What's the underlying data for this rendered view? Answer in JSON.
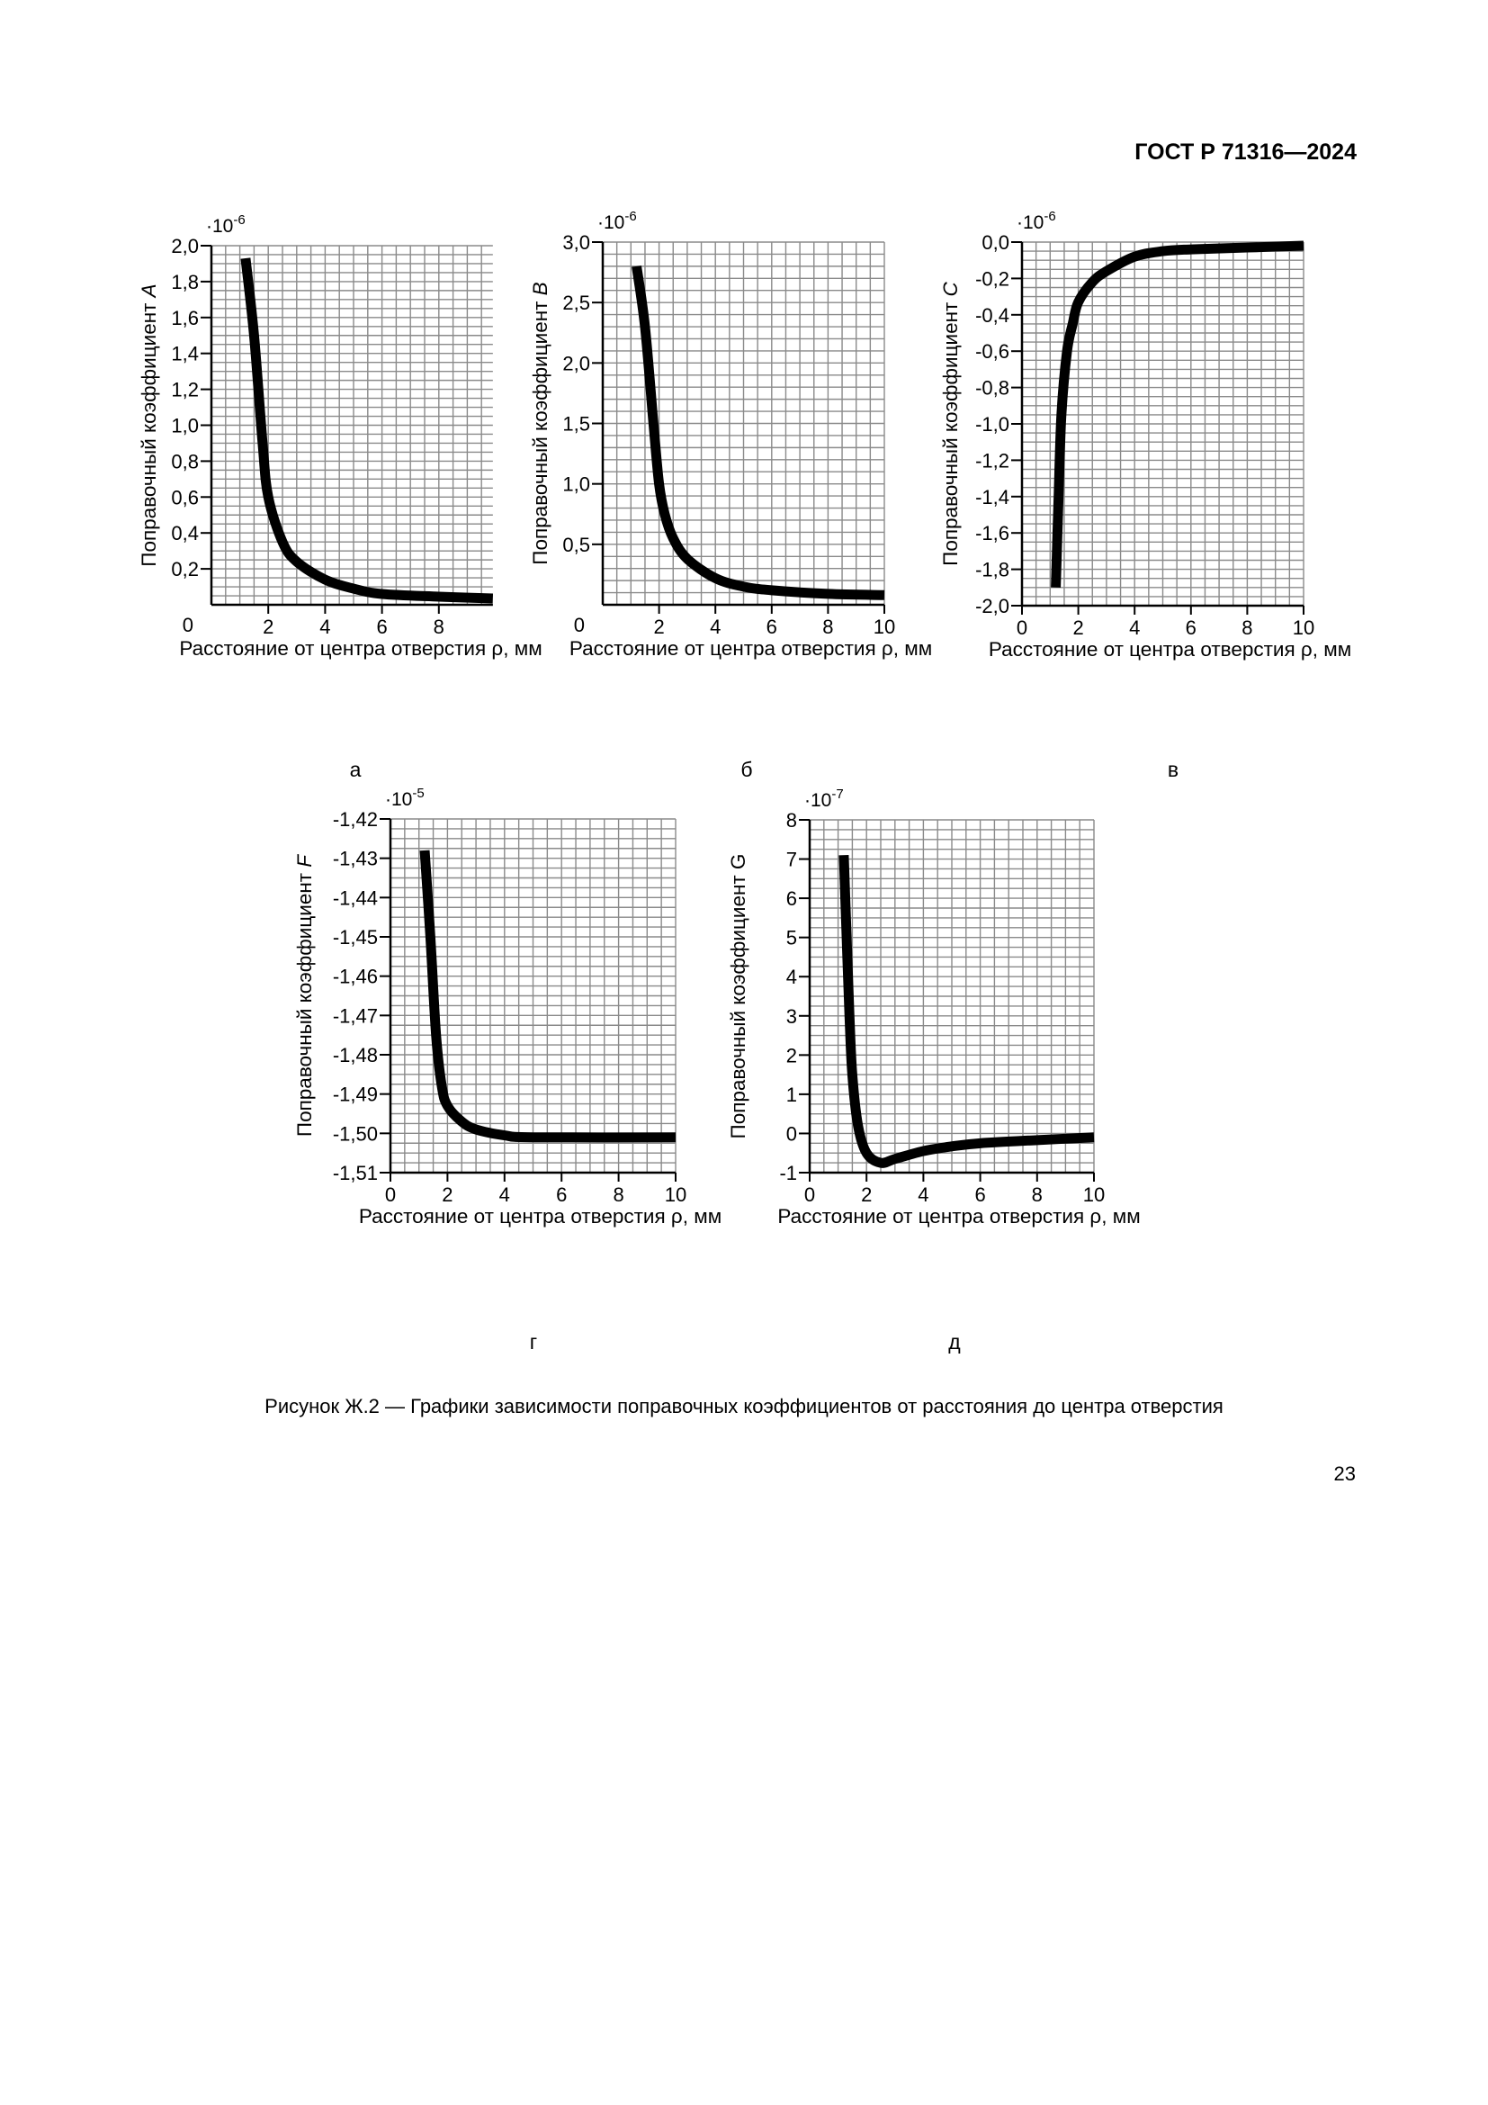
{
  "header": {
    "doc_id": "ГОСТ Р 71316—2024"
  },
  "caption": "Рисунок Ж.2 — Графики зависимости поправочных коэффициентов от расстояния до центра отверстия",
  "page_number": "23",
  "chart_data": [
    {
      "type": "line",
      "panel_label": "а",
      "xlabel": "Расстояние от центра отверстия ρ, мм",
      "ylabel": "Поправочный коэффициент",
      "ylabel_symbol": "A",
      "ylabel_symbol_italic": true,
      "multiplier": {
        "base": "·10",
        "exp": "-6"
      },
      "xlim": [
        0,
        10
      ],
      "ylim": [
        0,
        2.0
      ],
      "grid": true,
      "xticks": [
        {
          "v": 2,
          "label": "2"
        },
        {
          "v": 4,
          "label": "4"
        },
        {
          "v": 6,
          "label": "6"
        },
        {
          "v": 8,
          "label": "8"
        }
      ],
      "yticks": [
        {
          "v": 0,
          "label": "0"
        },
        {
          "v": 0.2,
          "label": "0,2"
        },
        {
          "v": 0.4,
          "label": "0,4"
        },
        {
          "v": 0.6,
          "label": "0,6"
        },
        {
          "v": 0.8,
          "label": "0,8"
        },
        {
          "v": 1.0,
          "label": "1,0"
        },
        {
          "v": 1.2,
          "label": "1,2"
        },
        {
          "v": 1.4,
          "label": "1,4"
        },
        {
          "v": 1.6,
          "label": "1,6"
        },
        {
          "v": 1.8,
          "label": "1,8"
        },
        {
          "v": 2.0,
          "label": "2,0"
        }
      ],
      "x": [
        1.2,
        1.5,
        1.8,
        2.0,
        2.5,
        3,
        4,
        5,
        6,
        8,
        9.9
      ],
      "y": [
        1.93,
        1.5,
        0.9,
        0.6,
        0.35,
        0.24,
        0.14,
        0.09,
        0.06,
        0.045,
        0.035
      ]
    },
    {
      "type": "line",
      "panel_label": "б",
      "xlabel": "Расстояние от центра отверстия ρ, мм",
      "ylabel": "Поправочный коэффициент",
      "ylabel_symbol": "B",
      "ylabel_symbol_italic": true,
      "multiplier": {
        "base": "·10",
        "exp": "-6"
      },
      "xlim": [
        0,
        10
      ],
      "ylim": [
        0,
        3.0
      ],
      "grid": true,
      "xticks": [
        {
          "v": 2,
          "label": "2"
        },
        {
          "v": 4,
          "label": "4"
        },
        {
          "v": 6,
          "label": "6"
        },
        {
          "v": 8,
          "label": "8"
        },
        {
          "v": 10,
          "label": "10"
        }
      ],
      "yticks": [
        {
          "v": 0,
          "label": "0"
        },
        {
          "v": 0.5,
          "label": "0,5"
        },
        {
          "v": 1.0,
          "label": "1,0"
        },
        {
          "v": 1.5,
          "label": "1,5"
        },
        {
          "v": 2.0,
          "label": "2,0"
        },
        {
          "v": 2.5,
          "label": "2,5"
        },
        {
          "v": 3.0,
          "label": "3,0"
        }
      ],
      "x": [
        1.2,
        1.5,
        1.8,
        2.0,
        2.2,
        2.5,
        3,
        4,
        5,
        6,
        8,
        10
      ],
      "y": [
        2.8,
        2.3,
        1.5,
        1.0,
        0.75,
        0.55,
        0.38,
        0.22,
        0.15,
        0.12,
        0.09,
        0.08
      ]
    },
    {
      "type": "line",
      "panel_label": "в",
      "xlabel": "Расстояние от центра отверстия ρ, мм",
      "ylabel": "Поправочный коэффициент",
      "ylabel_symbol": "C",
      "ylabel_symbol_italic": true,
      "multiplier": {
        "base": "·10",
        "exp": "-6"
      },
      "xlim": [
        0,
        10
      ],
      "ylim": [
        -2.0,
        0.0
      ],
      "grid": true,
      "xticks": [
        {
          "v": 0,
          "label": "0"
        },
        {
          "v": 2,
          "label": "2"
        },
        {
          "v": 4,
          "label": "4"
        },
        {
          "v": 6,
          "label": "6"
        },
        {
          "v": 8,
          "label": "8"
        },
        {
          "v": 10,
          "label": "10"
        }
      ],
      "yticks": [
        {
          "v": 0,
          "label": "0,0"
        },
        {
          "v": -0.2,
          "label": "-0,2"
        },
        {
          "v": -0.4,
          "label": "-0,4"
        },
        {
          "v": -0.6,
          "label": "-0,6"
        },
        {
          "v": -0.8,
          "label": "-0,8"
        },
        {
          "v": -1.0,
          "label": "-1,0"
        },
        {
          "v": -1.2,
          "label": "-1,2"
        },
        {
          "v": -1.4,
          "label": "-1,4"
        },
        {
          "v": -1.6,
          "label": "-1,6"
        },
        {
          "v": -1.8,
          "label": "-1,8"
        },
        {
          "v": -2.0,
          "label": "-2,0"
        }
      ],
      "x": [
        1.2,
        1.3,
        1.4,
        1.6,
        1.8,
        2.0,
        2.5,
        3,
        4,
        5,
        6,
        8,
        10
      ],
      "y": [
        -1.9,
        -1.4,
        -0.95,
        -0.6,
        -0.45,
        -0.33,
        -0.22,
        -0.16,
        -0.08,
        -0.05,
        -0.04,
        -0.03,
        -0.02
      ]
    },
    {
      "type": "line",
      "panel_label": "г",
      "xlabel": "Расстояние от центра отверстия ρ, мм",
      "ylabel": "Поправочный коэффициент",
      "ylabel_symbol": "F",
      "ylabel_symbol_italic": true,
      "multiplier": {
        "base": "·10",
        "exp": "-5"
      },
      "xlim": [
        0,
        10
      ],
      "ylim": [
        -1.51,
        -1.42
      ],
      "grid": true,
      "xticks": [
        {
          "v": 0,
          "label": "0"
        },
        {
          "v": 2,
          "label": "2"
        },
        {
          "v": 4,
          "label": "4"
        },
        {
          "v": 6,
          "label": "6"
        },
        {
          "v": 8,
          "label": "8"
        },
        {
          "v": 10,
          "label": "10"
        }
      ],
      "yticks": [
        {
          "v": -1.42,
          "label": "-1,42"
        },
        {
          "v": -1.43,
          "label": "-1,43"
        },
        {
          "v": -1.44,
          "label": "-1,44"
        },
        {
          "v": -1.45,
          "label": "-1,45"
        },
        {
          "v": -1.46,
          "label": "-1,46"
        },
        {
          "v": -1.47,
          "label": "-1,47"
        },
        {
          "v": -1.48,
          "label": "-1,48"
        },
        {
          "v": -1.49,
          "label": "-1,49"
        },
        {
          "v": -1.5,
          "label": "-1,50"
        },
        {
          "v": -1.51,
          "label": "-1,51"
        }
      ],
      "x": [
        1.2,
        1.4,
        1.6,
        1.8,
        2.0,
        2.5,
        3,
        4,
        5,
        10
      ],
      "y": [
        -1.428,
        -1.45,
        -1.475,
        -1.488,
        -1.493,
        -1.497,
        -1.499,
        -1.5005,
        -1.501,
        -1.501
      ]
    },
    {
      "type": "line",
      "panel_label": "д",
      "xlabel": "Расстояние от центра отверстия ρ, мм",
      "ylabel": "Поправочный коэффициент",
      "ylabel_symbol": "G",
      "ylabel_symbol_italic": false,
      "multiplier": {
        "base": "·10",
        "exp": "-7"
      },
      "xlim": [
        0,
        10
      ],
      "ylim": [
        -1,
        8
      ],
      "grid": true,
      "xticks": [
        {
          "v": 0,
          "label": "0"
        },
        {
          "v": 2,
          "label": "2"
        },
        {
          "v": 4,
          "label": "4"
        },
        {
          "v": 6,
          "label": "6"
        },
        {
          "v": 8,
          "label": "8"
        },
        {
          "v": 10,
          "label": "10"
        }
      ],
      "yticks": [
        {
          "v": -1,
          "label": "-1"
        },
        {
          "v": 0,
          "label": "0"
        },
        {
          "v": 1,
          "label": "1"
        },
        {
          "v": 2,
          "label": "2"
        },
        {
          "v": 3,
          "label": "3"
        },
        {
          "v": 4,
          "label": "4"
        },
        {
          "v": 5,
          "label": "5"
        },
        {
          "v": 6,
          "label": "6"
        },
        {
          "v": 7,
          "label": "7"
        },
        {
          "v": 8,
          "label": "8"
        }
      ],
      "x": [
        1.2,
        1.3,
        1.4,
        1.5,
        1.7,
        2.0,
        2.5,
        3,
        4,
        5,
        6,
        8,
        10
      ],
      "y": [
        7.1,
        5,
        3,
        1.5,
        0.2,
        -0.5,
        -0.75,
        -0.65,
        -0.45,
        -0.33,
        -0.25,
        -0.17,
        -0.1
      ]
    }
  ]
}
